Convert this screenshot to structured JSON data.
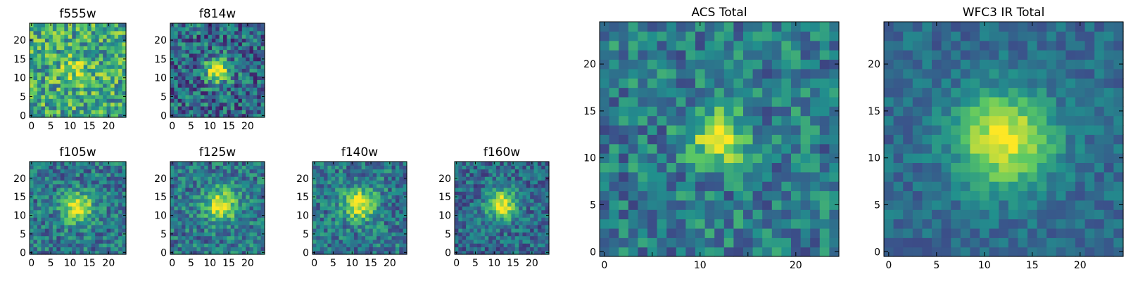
{
  "chart_data": {
    "type": "heatmap",
    "colormap": "viridis",
    "colormap_stops": [
      "#440154",
      "#3b528b",
      "#21908d",
      "#5dc963",
      "#fde725"
    ],
    "panels": [
      {
        "id": "f555w",
        "title": "f555w",
        "size": 25,
        "center": [
          12,
          12
        ],
        "peak": 0.2,
        "sigma": 3.0,
        "background": 0.6,
        "noise": 0.3,
        "seed": 11,
        "xticks": [
          0,
          5,
          10,
          15,
          20
        ],
        "yticks": [
          0,
          5,
          10,
          15,
          20
        ],
        "xtick_labels": [
          "0",
          "5",
          "10",
          "15",
          "20"
        ],
        "ytick_labels": [
          "0",
          "5",
          "10",
          "15",
          "20"
        ],
        "xlim": [
          0,
          24
        ],
        "ylim": [
          0,
          24
        ]
      },
      {
        "id": "f814w",
        "title": "f814w",
        "size": 25,
        "center": [
          12,
          12
        ],
        "peak": 0.75,
        "sigma": 2.2,
        "background": 0.35,
        "noise": 0.28,
        "seed": 23,
        "xticks": [
          0,
          5,
          10,
          15,
          20
        ],
        "yticks": [
          0,
          5,
          10,
          15,
          20
        ],
        "xtick_labels": [
          "0",
          "5",
          "10",
          "15",
          "20"
        ],
        "ytick_labels": [
          "0",
          "5",
          "10",
          "15",
          "20"
        ],
        "xlim": [
          0,
          24
        ],
        "ylim": [
          0,
          24
        ]
      },
      {
        "id": "f105w",
        "title": "f105w",
        "size": 25,
        "center": [
          12,
          12
        ],
        "peak": 0.6,
        "sigma": 2.8,
        "background": 0.4,
        "noise": 0.22,
        "seed": 37,
        "xticks": [
          0,
          5,
          10,
          15,
          20
        ],
        "yticks": [
          0,
          5,
          10,
          15,
          20
        ],
        "xtick_labels": [
          "0",
          "5",
          "10",
          "15",
          "20"
        ],
        "ytick_labels": [
          "0",
          "5",
          "10",
          "15",
          "20"
        ],
        "xlim": [
          0,
          24
        ],
        "ylim": [
          0,
          24
        ]
      },
      {
        "id": "f125w",
        "title": "f125w",
        "size": 25,
        "center": [
          13,
          13
        ],
        "peak": 0.6,
        "sigma": 3.0,
        "background": 0.4,
        "noise": 0.22,
        "seed": 41,
        "xticks": [
          0,
          5,
          10,
          15,
          20
        ],
        "yticks": [
          0,
          5,
          10,
          15,
          20
        ],
        "xtick_labels": [
          "0",
          "5",
          "10",
          "15",
          "20"
        ],
        "ytick_labels": [
          "0",
          "5",
          "10",
          "15",
          "20"
        ],
        "xlim": [
          0,
          24
        ],
        "ylim": [
          0,
          24
        ]
      },
      {
        "id": "f140w",
        "title": "f140w",
        "size": 25,
        "center": [
          12,
          13
        ],
        "peak": 0.6,
        "sigma": 3.0,
        "background": 0.4,
        "noise": 0.22,
        "seed": 53,
        "xticks": [
          0,
          5,
          10,
          15,
          20
        ],
        "yticks": [
          0,
          5,
          10,
          15,
          20
        ],
        "xtick_labels": [
          "0",
          "5",
          "10",
          "15",
          "20"
        ],
        "ytick_labels": [
          "0",
          "5",
          "10",
          "15",
          "20"
        ],
        "xlim": [
          0,
          24
        ],
        "ylim": [
          0,
          24
        ]
      },
      {
        "id": "f160w",
        "title": "f160w",
        "size": 25,
        "center": [
          12,
          13
        ],
        "peak": 0.65,
        "sigma": 2.8,
        "background": 0.35,
        "noise": 0.2,
        "seed": 67,
        "xticks": [
          0,
          5,
          10,
          15,
          20
        ],
        "yticks": [
          0,
          5,
          10,
          15,
          20
        ],
        "xtick_labels": [
          "0",
          "5",
          "10",
          "15",
          "20"
        ],
        "ytick_labels": [
          "0",
          "5",
          "10",
          "15",
          "20"
        ],
        "xlim": [
          0,
          24
        ],
        "ylim": [
          0,
          24
        ]
      },
      {
        "id": "acs-total",
        "title": "ACS Total",
        "size": 25,
        "center": [
          12,
          12
        ],
        "peak": 0.6,
        "sigma": 2.0,
        "background": 0.42,
        "noise": 0.22,
        "seed": 79,
        "xticks": [
          0,
          10,
          20
        ],
        "yticks": [
          0,
          5,
          10,
          15,
          20
        ],
        "xtick_labels": [
          "0",
          "10",
          "20"
        ],
        "ytick_labels": [
          "0",
          "5",
          "10",
          "15",
          "20"
        ],
        "minor_xticks": [
          5,
          15
        ],
        "xlim": [
          0,
          24
        ],
        "ylim": [
          0,
          24
        ]
      },
      {
        "id": "wfc3-ir-total",
        "title": "WFC3 IR Total",
        "size": 25,
        "center": [
          12,
          12
        ],
        "peak": 0.65,
        "sigma": 3.5,
        "background": 0.35,
        "noise": 0.12,
        "seed": 97,
        "xticks": [
          0,
          5,
          10,
          15,
          20
        ],
        "yticks": [
          0,
          5,
          10,
          15,
          20
        ],
        "xtick_labels": [
          "0",
          "5",
          "10",
          "15",
          "20"
        ],
        "ytick_labels": [
          "0",
          "5",
          "10",
          "15",
          "20"
        ],
        "xlim": [
          0,
          24
        ],
        "ylim": [
          0,
          24
        ]
      }
    ]
  }
}
